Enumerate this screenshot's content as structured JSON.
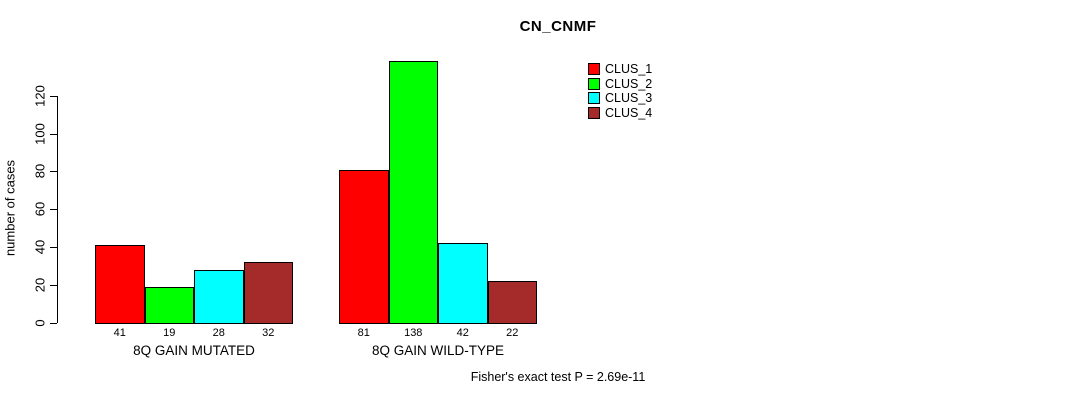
{
  "chart_data": {
    "type": "bar",
    "title": "CN_CNMF",
    "ylabel": "number of cases",
    "xlabel": "",
    "categories": [
      "8Q GAIN MUTATED",
      "8Q GAIN WILD-TYPE"
    ],
    "series": [
      {
        "name": "CLUS_1",
        "color": "#FF0000",
        "values": [
          41,
          81
        ]
      },
      {
        "name": "CLUS_2",
        "color": "#00FF00",
        "values": [
          19,
          138
        ]
      },
      {
        "name": "CLUS_3",
        "color": "#00FFFF",
        "values": [
          28,
          42
        ]
      },
      {
        "name": "CLUS_4",
        "color": "#A52A2A",
        "values": [
          32,
          22
        ]
      }
    ],
    "bar_value_labels": true,
    "yticks": [
      0,
      20,
      40,
      60,
      80,
      100,
      120
    ],
    "ylim": [
      0,
      138
    ],
    "grid": false,
    "legend_position": "top-right",
    "annotation": "Fisher's exact test P = 2.69e-11"
  }
}
